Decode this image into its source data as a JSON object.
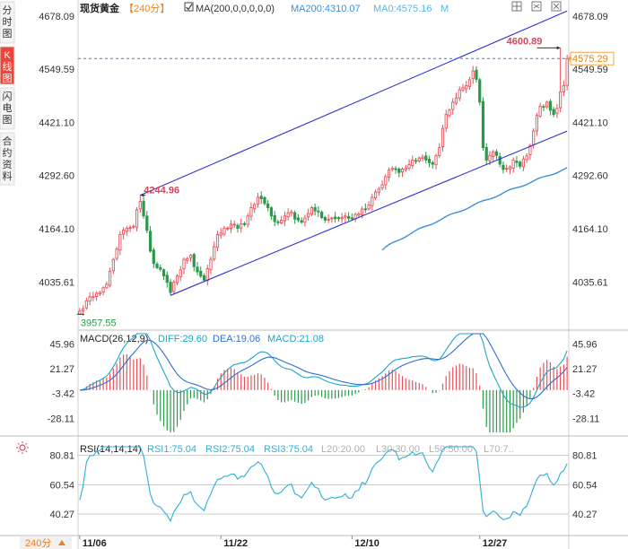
{
  "side_tabs": [
    {
      "label": "分时图",
      "active": false
    },
    {
      "label": "K线图",
      "active": true
    },
    {
      "label": "闪电图",
      "active": false
    },
    {
      "label": "合约资料",
      "active": false
    }
  ],
  "header": {
    "instrument": "现货黄金",
    "period_tag": "【240分】",
    "ma_toggle": "MA(200,0,0,0,0,0)",
    "ma200_label": "MA200:4310.07",
    "ma0_label": "MA0:4575.16",
    "ma_extra": "M"
  },
  "period_selector": "240分",
  "colors": {
    "up": "#e8525a",
    "down": "#2a9a48",
    "ma200": "#3c8fd8",
    "channel": "#2f2fd8",
    "last_price_line": "#3b7dd8",
    "price_label_border": "#f0a640",
    "price_label_text": "#e8821e",
    "diff": "#1aa8c8",
    "dea": "#2d6fd0",
    "rsi": "#2bb0d8",
    "annotation": "#d8465a"
  },
  "chart_data": [
    {
      "type": "candlestick",
      "title": "现货黄金 240分",
      "y_ticks": [
        4678.09,
        4549.59,
        4421.1,
        4292.6,
        4164.1,
        4035.61
      ],
      "ylim": [
        3930,
        4695
      ],
      "x_tick_labels": [
        "11/06",
        "11/22",
        "12/10",
        "12/27"
      ],
      "x_tick_positions": [
        0,
        42,
        81,
        119
      ],
      "n_bars": 146,
      "ma200_value": 4310.07,
      "last_price": 4575.29,
      "annotations": [
        {
          "label": "4244.96",
          "bar": 18,
          "value": 4244.96
        },
        {
          "label": "4600.89",
          "bar": 143,
          "value": 4600.89
        },
        {
          "label": "3957.55",
          "bar": 0,
          "value": 3957.55
        }
      ],
      "channel_upper": [
        {
          "bar": 18,
          "value": 4244.96
        },
        {
          "bar": 145,
          "value": 4690
        }
      ],
      "channel_lower": [
        {
          "bar": 27,
          "value": 4003
        },
        {
          "bar": 145,
          "value": 4400
        }
      ],
      "close_anchors": [
        [
          0,
          3965
        ],
        [
          2,
          3990
        ],
        [
          4,
          4000
        ],
        [
          6,
          4010
        ],
        [
          8,
          4030
        ],
        [
          10,
          4090
        ],
        [
          12,
          4150
        ],
        [
          14,
          4165
        ],
        [
          16,
          4170
        ],
        [
          17,
          4210
        ],
        [
          18,
          4230
        ],
        [
          19,
          4195
        ],
        [
          20,
          4160
        ],
        [
          21,
          4110
        ],
        [
          22,
          4080
        ],
        [
          23,
          4070
        ],
        [
          25,
          4050
        ],
        [
          27,
          4010
        ],
        [
          29,
          4050
        ],
        [
          31,
          4090
        ],
        [
          33,
          4100
        ],
        [
          35,
          4060
        ],
        [
          37,
          4040
        ],
        [
          39,
          4090
        ],
        [
          41,
          4150
        ],
        [
          43,
          4165
        ],
        [
          45,
          4175
        ],
        [
          47,
          4165
        ],
        [
          49,
          4175
        ],
        [
          51,
          4215
        ],
        [
          53,
          4240
        ],
        [
          55,
          4225
        ],
        [
          57,
          4195
        ],
        [
          59,
          4180
        ],
        [
          61,
          4195
        ],
        [
          63,
          4205
        ],
        [
          65,
          4185
        ],
        [
          67,
          4190
        ],
        [
          69,
          4215
        ],
        [
          71,
          4205
        ],
        [
          73,
          4185
        ],
        [
          75,
          4190
        ],
        [
          77,
          4190
        ],
        [
          79,
          4195
        ],
        [
          81,
          4190
        ],
        [
          83,
          4200
        ],
        [
          85,
          4210
        ],
        [
          87,
          4240
        ],
        [
          89,
          4260
        ],
        [
          91,
          4290
        ],
        [
          93,
          4310
        ],
        [
          95,
          4300
        ],
        [
          97,
          4310
        ],
        [
          99,
          4330
        ],
        [
          101,
          4335
        ],
        [
          103,
          4330
        ],
        [
          105,
          4320
        ],
        [
          107,
          4360
        ],
        [
          109,
          4440
        ],
        [
          111,
          4470
        ],
        [
          113,
          4500
        ],
        [
          115,
          4510
        ],
        [
          117,
          4545
        ],
        [
          118,
          4525
        ],
        [
          119,
          4470
        ],
        [
          120,
          4360
        ],
        [
          121,
          4330
        ],
        [
          123,
          4350
        ],
        [
          125,
          4320
        ],
        [
          127,
          4310
        ],
        [
          129,
          4330
        ],
        [
          131,
          4315
        ],
        [
          133,
          4340
        ],
        [
          135,
          4400
        ],
        [
          137,
          4460
        ],
        [
          139,
          4470
        ],
        [
          141,
          4440
        ],
        [
          142,
          4455
        ],
        [
          143,
          4495
        ],
        [
          144,
          4510
        ],
        [
          145,
          4575
        ]
      ]
    },
    {
      "type": "bar+line",
      "title": "MACD(26,12,9)",
      "legend": [
        {
          "name": "DIFF",
          "label": "DIFF:29.60",
          "value": 29.6
        },
        {
          "name": "DEA",
          "label": "DEA:19.06",
          "value": 19.06
        },
        {
          "name": "MACD",
          "label": "MACD:21.08",
          "value": 21.08
        }
      ],
      "y_ticks": [
        45.96,
        21.27,
        -3.42,
        -28.11
      ],
      "ylim": [
        -42,
        56
      ]
    },
    {
      "type": "line",
      "title": "RSI(14,14,14)",
      "legend": [
        {
          "name": "RSI1",
          "label": "RSI1:75.04",
          "value": 75.04
        },
        {
          "name": "RSI2",
          "label": "RSI2:75.04",
          "value": 75.04
        },
        {
          "name": "RSI3",
          "label": "RSI3:75.04",
          "value": 75.04
        },
        {
          "name": "L20",
          "label": "L20:20.00",
          "value": 20.0
        },
        {
          "name": "L30",
          "label": "L30:30.00",
          "value": 30.0
        },
        {
          "name": "L50",
          "label": "L50:50.00",
          "value": 50.0
        },
        {
          "name": "L70",
          "label": "L70:7..",
          "value": 70.0
        }
      ],
      "y_ticks": [
        80.81,
        60.54,
        40.27
      ],
      "ylim": [
        26,
        88
      ]
    }
  ]
}
